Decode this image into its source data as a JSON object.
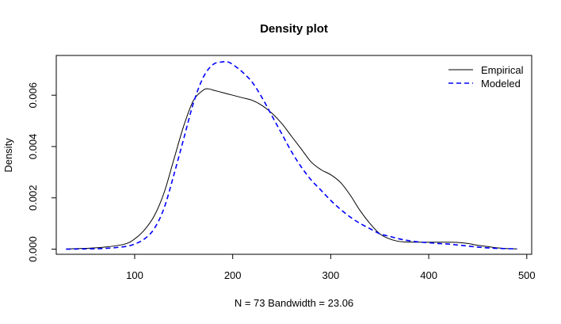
{
  "chart_data": {
    "type": "line",
    "title": "Density plot",
    "xlabel": "N = 73   Bandwidth = 23.06",
    "ylabel": "Density",
    "xlim": [
      20,
      505
    ],
    "ylim": [
      -0.0002,
      0.00755
    ],
    "x_ticks": [
      100,
      200,
      300,
      400,
      500
    ],
    "y_ticks": [
      0.0,
      0.002,
      0.004,
      0.006
    ],
    "y_tick_labels": [
      "0.000",
      "0.002",
      "0.004",
      "0.006"
    ],
    "legend_position": "top-right",
    "grid": false,
    "series": [
      {
        "name": "Empirical",
        "color": "#000000",
        "dash": "solid",
        "x": [
          30,
          50,
          70,
          90,
          100,
          110,
          120,
          130,
          140,
          150,
          160,
          170,
          175,
          180,
          190,
          200,
          210,
          220,
          230,
          240,
          250,
          260,
          270,
          280,
          290,
          300,
          310,
          320,
          330,
          340,
          350,
          360,
          370,
          380,
          390,
          400,
          410,
          420,
          430,
          440,
          450,
          460,
          470,
          480,
          490
        ],
        "y": [
          1e-05,
          3e-05,
          8e-05,
          0.0002,
          0.0004,
          0.00075,
          0.0013,
          0.0022,
          0.0035,
          0.0048,
          0.0058,
          0.0062,
          0.00625,
          0.0062,
          0.0061,
          0.006,
          0.0059,
          0.0058,
          0.0056,
          0.0053,
          0.0049,
          0.0044,
          0.0039,
          0.0034,
          0.0031,
          0.0029,
          0.0026,
          0.0021,
          0.0015,
          0.001,
          0.0006,
          0.0004,
          0.0003,
          0.00028,
          0.00027,
          0.00027,
          0.00027,
          0.00027,
          0.00026,
          0.00022,
          0.00015,
          0.0001,
          5e-05,
          2e-05,
          1e-05
        ]
      },
      {
        "name": "Modeled",
        "color": "#0000ff",
        "dash": "dashed",
        "x": [
          30,
          50,
          70,
          90,
          100,
          110,
          120,
          130,
          140,
          150,
          160,
          170,
          180,
          190,
          195,
          200,
          210,
          220,
          230,
          240,
          250,
          260,
          270,
          280,
          290,
          300,
          310,
          320,
          330,
          340,
          350,
          360,
          370,
          380,
          390,
          400,
          410,
          420,
          430,
          440,
          450,
          460,
          470,
          480,
          490
        ],
        "y": [
          0.0,
          1e-05,
          3e-05,
          0.0001,
          0.0002,
          0.0004,
          0.0008,
          0.0016,
          0.0029,
          0.0043,
          0.0057,
          0.0067,
          0.0072,
          0.0073,
          0.0073,
          0.0072,
          0.0069,
          0.0065,
          0.0059,
          0.0052,
          0.0045,
          0.0038,
          0.0032,
          0.0027,
          0.0023,
          0.0019,
          0.00155,
          0.00125,
          0.001,
          0.0008,
          0.0006,
          0.0005,
          0.0004,
          0.00033,
          0.00028,
          0.00025,
          0.00022,
          0.0002,
          0.00016,
          0.00012,
          8e-05,
          5e-05,
          3e-05,
          2e-05,
          1e-05
        ]
      }
    ]
  }
}
